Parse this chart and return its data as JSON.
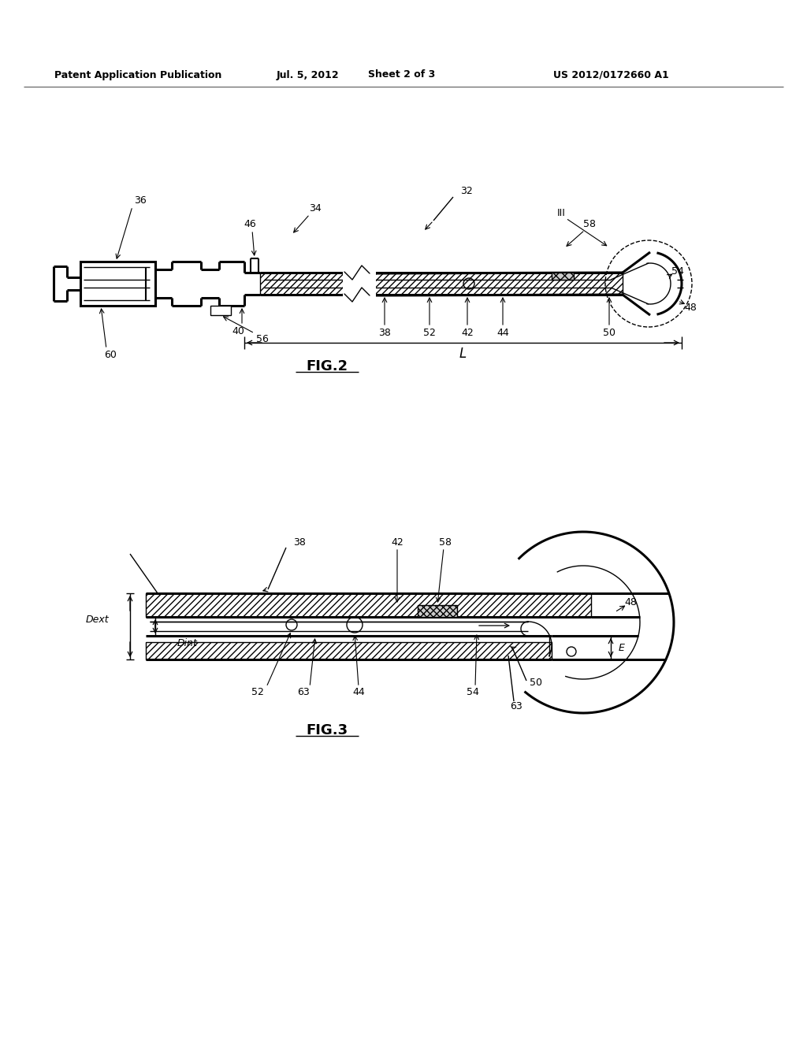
{
  "bg_color": "#ffffff",
  "header_text": "Patent Application Publication",
  "header_date": "Jul. 5, 2012",
  "header_sheet": "Sheet 2 of 3",
  "header_patent": "US 2012/0172660 A1",
  "fig2_label": "FIG.2",
  "fig3_label": "FIG.3"
}
